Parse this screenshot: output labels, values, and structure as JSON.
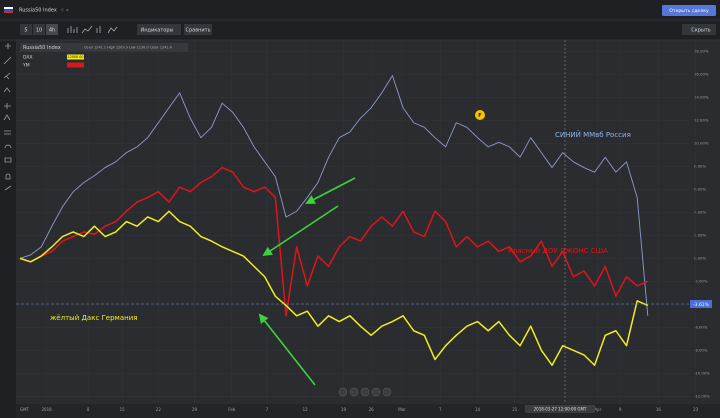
{
  "header": {
    "instrument": "Russia50 Index",
    "open_trade": "Открыть сделку"
  },
  "toolbar": {
    "intervals": [
      "5",
      "10",
      "4h"
    ],
    "indicators": "Индикаторы",
    "compare": "Сравнить",
    "hide": "Скрыть"
  },
  "legend_info": {
    "ohlc": "Open 1241.1 High 1269.9 Low 1230.0 Close 1241.4",
    "dax_tag": "12000.00"
  },
  "chart_data": {
    "type": "line",
    "grid": true,
    "x": [
      0,
      1,
      2,
      3,
      4,
      5,
      6,
      7,
      8,
      9,
      10,
      11,
      12,
      13,
      14,
      15,
      16,
      17,
      18,
      19,
      20,
      21,
      22,
      23,
      24,
      25,
      26,
      27,
      28,
      29,
      30,
      31,
      32,
      33,
      34,
      35,
      36,
      37,
      38,
      39,
      40,
      41,
      42,
      43,
      44,
      45,
      46,
      47,
      48,
      49,
      50,
      51,
      52,
      53,
      54,
      55,
      56,
      57,
      58,
      59
    ],
    "xlim": [
      0,
      64
    ],
    "xticks": [
      {
        "value": 2.5,
        "label": "2018"
      },
      {
        "value": 6.4,
        "label": "8"
      },
      {
        "value": 9.6,
        "label": "15"
      },
      {
        "value": 13,
        "label": "22"
      },
      {
        "value": 16.4,
        "label": "29"
      },
      {
        "value": 19.9,
        "label": "Feb"
      },
      {
        "value": 23.2,
        "label": "7"
      },
      {
        "value": 26.8,
        "label": "12"
      },
      {
        "value": 30.4,
        "label": "19"
      },
      {
        "value": 33,
        "label": "26"
      },
      {
        "value": 35.9,
        "label": "Mar"
      },
      {
        "value": 39.5,
        "label": "7"
      },
      {
        "value": 43,
        "label": "14"
      },
      {
        "value": 46.5,
        "label": "21"
      },
      {
        "value": 54.3,
        "label": "Apr"
      },
      {
        "value": 56.4,
        "label": "9"
      },
      {
        "value": 60,
        "label": "16"
      },
      {
        "value": 63.5,
        "label": "23"
      }
    ],
    "ylim": [
      -12.5,
      19
    ],
    "yticks": [
      {
        "value": -12,
        "label": "-12.00%"
      },
      {
        "value": -10,
        "label": "-10.00%"
      },
      {
        "value": -8,
        "label": "-8.00%"
      },
      {
        "value": -6,
        "label": "-6.00%"
      },
      {
        "value": -4,
        "label": "-4.00%"
      },
      {
        "value": -2,
        "label": "-2.00%"
      },
      {
        "value": 0,
        "label": "0.00%"
      },
      {
        "value": 2,
        "label": "2.00%"
      },
      {
        "value": 4,
        "label": "4.00%"
      },
      {
        "value": 6,
        "label": "6.00%"
      },
      {
        "value": 8,
        "label": "8.00%"
      },
      {
        "value": 10,
        "label": "10.00%"
      },
      {
        "value": 12,
        "label": "12.00%"
      },
      {
        "value": 14,
        "label": "14.00%"
      },
      {
        "value": 16,
        "label": "16.00%"
      },
      {
        "value": 18,
        "label": "18.00%"
      }
    ],
    "series": [
      {
        "name": "Russia50 Index",
        "color": "#8e9bc7",
        "values": [
          0,
          0.3,
          1.0,
          2.8,
          4.5,
          5.8,
          6.6,
          7.2,
          7.9,
          8.4,
          9.2,
          9.7,
          10.5,
          11.8,
          13.1,
          14.4,
          12.2,
          10.5,
          11.4,
          13.5,
          12.7,
          11.4,
          9.7,
          8.4,
          7.1,
          3.6,
          4.1,
          5.3,
          6.6,
          8.8,
          10.5,
          11.0,
          12.2,
          13.1,
          14.4,
          15.9,
          13.1,
          11.8,
          11.4,
          10.5,
          9.7,
          11.8,
          11.4,
          10.5,
          9.7,
          10.1,
          9.7,
          8.8,
          10.5,
          9.2,
          7.9,
          9.2,
          8.4,
          7.9,
          7.5,
          8.8,
          7.5,
          8.4,
          5.3,
          -5.0
        ]
      },
      {
        "name": "YM",
        "color": "#e0151a",
        "values": [
          0,
          -0.3,
          0.2,
          0.6,
          1.5,
          1.9,
          2.3,
          2.1,
          2.8,
          3.2,
          4.1,
          4.9,
          5.3,
          5.8,
          4.9,
          6.2,
          5.8,
          6.6,
          7.1,
          7.9,
          7.5,
          6.2,
          5.8,
          6.2,
          5.3,
          -5.0,
          1.0,
          -2.4,
          0.2,
          -0.7,
          1.0,
          1.9,
          1.5,
          2.8,
          3.6,
          2.8,
          4.1,
          2.3,
          1.9,
          4.1,
          3.2,
          1.0,
          1.9,
          1.0,
          1.5,
          0.6,
          1.0,
          -0.3,
          0.2,
          1.5,
          -0.7,
          0.6,
          -1.6,
          -1.1,
          -2.4,
          -0.7,
          -3.3,
          -1.6,
          -2.4,
          -2.0
        ]
      },
      {
        "name": "DAX",
        "color": "#f2ee1c",
        "values": [
          0,
          -0.3,
          0.2,
          1.0,
          1.9,
          2.3,
          1.9,
          2.8,
          1.9,
          2.3,
          3.2,
          2.8,
          3.6,
          3.2,
          4.1,
          3.2,
          2.8,
          1.9,
          1.5,
          1.0,
          0.6,
          0.2,
          -0.7,
          -1.6,
          -3.3,
          -4.1,
          -5.0,
          -4.6,
          -5.9,
          -5.0,
          -5.5,
          -5.0,
          -5.9,
          -6.7,
          -5.9,
          -5.5,
          -5.0,
          -6.3,
          -6.7,
          -8.8,
          -7.6,
          -6.7,
          -5.9,
          -5.5,
          -6.3,
          -5.5,
          -6.7,
          -7.6,
          -5.9,
          -8.0,
          -9.3,
          -7.6,
          -8.0,
          -8.4,
          -9.3,
          -6.7,
          -6.3,
          -7.6,
          -3.7,
          -4.1
        ]
      }
    ],
    "annotations": [
      {
        "text": "СИНИЙ ММвб Россия",
        "color": "#8fb6e8"
      },
      {
        "text": "Красный ДОУ ДЖОНС США",
        "color": "#e0151a"
      },
      {
        "text": "жёлтый Дакс Германия",
        "color": "#f2ee1c"
      }
    ],
    "event_marker": "F",
    "price_tag": "-3.61%",
    "cursor_time": "2018-03-27 12:00:00 GMT",
    "timezone": "GMT"
  }
}
